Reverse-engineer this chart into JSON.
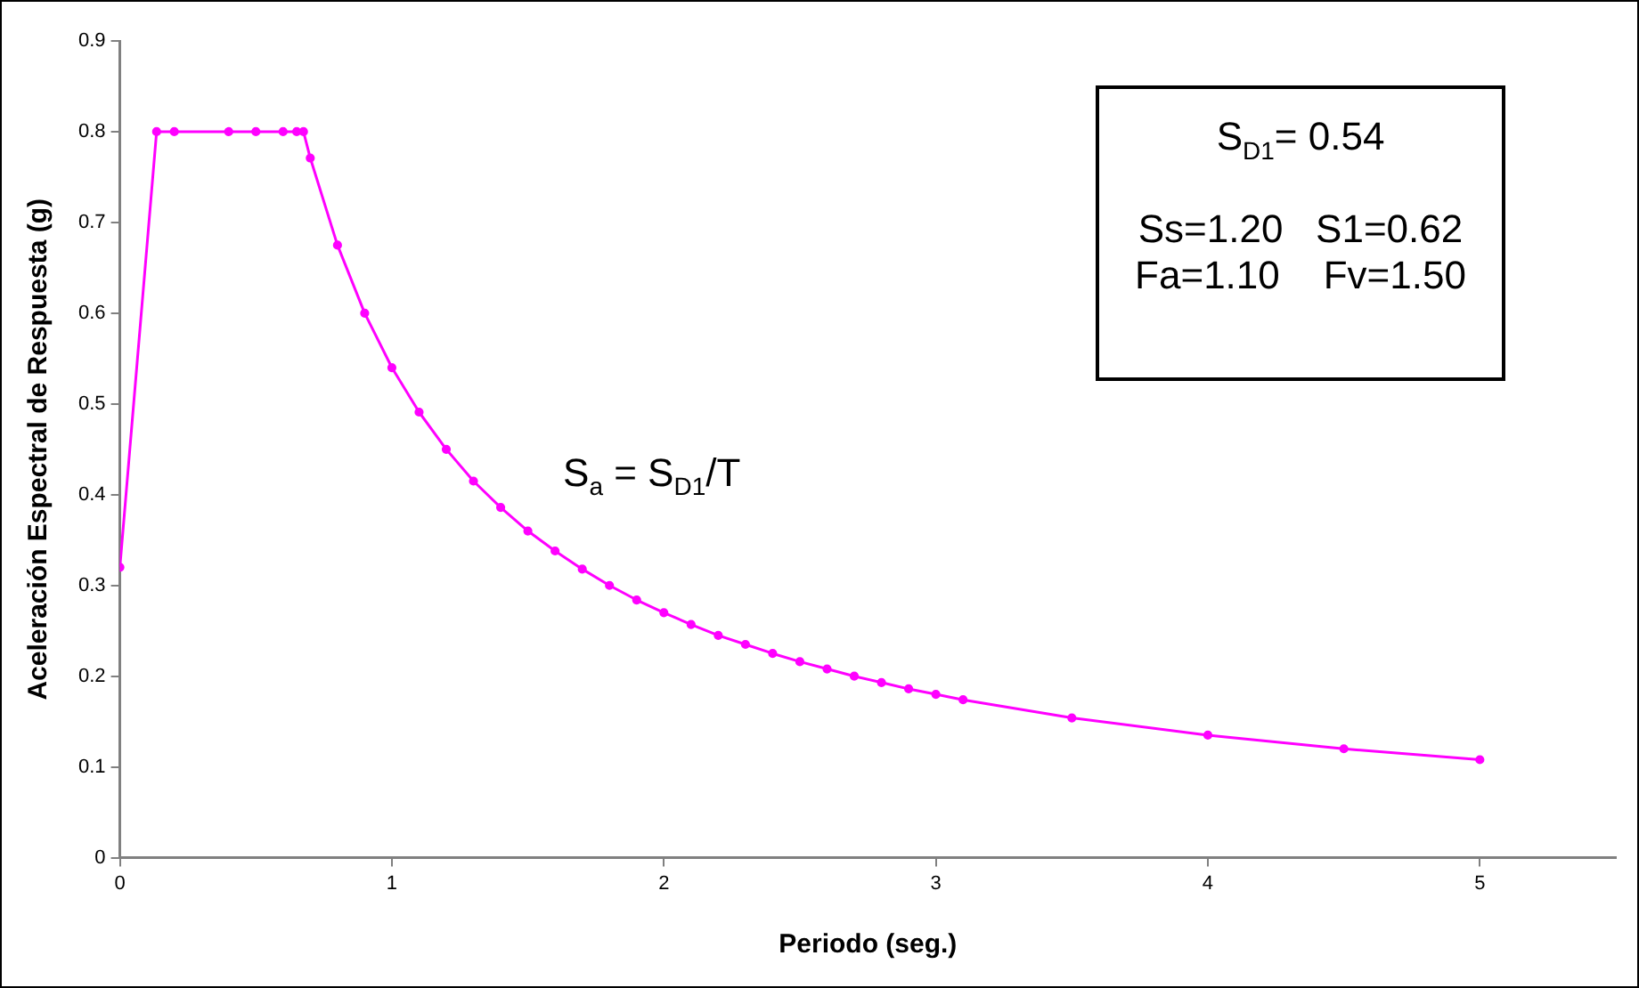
{
  "chart_data": {
    "type": "line",
    "xlabel": "Periodo (seg.)",
    "ylabel": "Aceleración Espectral de Respuesta (g)",
    "x": [
      0,
      0.135,
      0.2,
      0.4,
      0.5,
      0.6,
      0.65,
      0.675,
      0.7,
      0.8,
      0.9,
      1.0,
      1.1,
      1.2,
      1.3,
      1.4,
      1.5,
      1.6,
      1.7,
      1.8,
      1.9,
      2.0,
      2.1,
      2.2,
      2.3,
      2.4,
      2.5,
      2.6,
      2.7,
      2.8,
      2.9,
      3.0,
      3.1,
      3.5,
      4.0,
      4.5,
      5.0
    ],
    "series": [
      {
        "color": "#ff00ff",
        "values": [
          0.32,
          0.8,
          0.8,
          0.8,
          0.8,
          0.8,
          0.8,
          0.8,
          0.771,
          0.675,
          0.6,
          0.54,
          0.491,
          0.45,
          0.415,
          0.386,
          0.36,
          0.338,
          0.318,
          0.3,
          0.284,
          0.27,
          0.257,
          0.245,
          0.235,
          0.225,
          0.216,
          0.208,
          0.2,
          0.193,
          0.186,
          0.18,
          0.174,
          0.154,
          0.135,
          0.12,
          0.108
        ]
      }
    ],
    "xlim": [
      0,
      5.5
    ],
    "xticks": [
      0,
      1,
      2,
      3,
      4,
      5
    ],
    "ylim": [
      0,
      0.9
    ],
    "yticks": [
      0,
      0.1,
      0.2,
      0.3,
      0.4,
      0.5,
      0.6,
      0.7,
      0.8,
      0.9
    ],
    "grid": false,
    "legend": false,
    "marker": "circle",
    "line_style": "solid",
    "annotations": [
      "S$_{D1}$= 0.54",
      "Ss=1.20   S1=0.62",
      "Fa=1.10    Fv=1.50",
      "S$_{a}$ = S$_{D1}$/T"
    ]
  }
}
